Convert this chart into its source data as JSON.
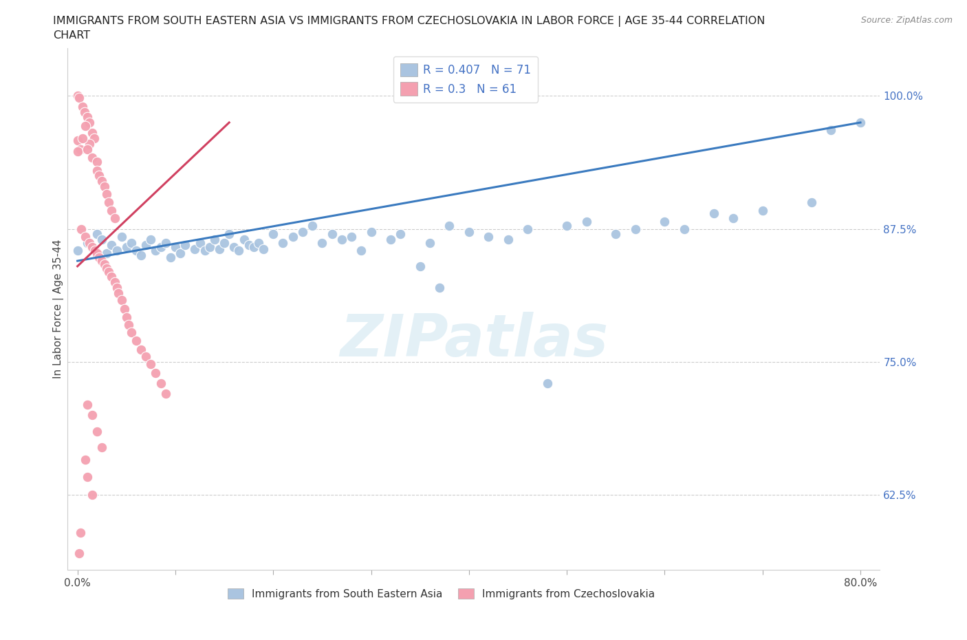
{
  "title_line1": "IMMIGRANTS FROM SOUTH EASTERN ASIA VS IMMIGRANTS FROM CZECHOSLOVAKIA IN LABOR FORCE | AGE 35-44 CORRELATION",
  "title_line2": "CHART",
  "source_text": "Source: ZipAtlas.com",
  "ylabel": "In Labor Force | Age 35-44",
  "R_blue": 0.407,
  "N_blue": 71,
  "R_pink": 0.3,
  "N_pink": 61,
  "legend_blue": "Immigrants from South Eastern Asia",
  "legend_pink": "Immigrants from Czechoslovakia",
  "blue_color": "#aac4e0",
  "pink_color": "#f4a0b0",
  "trend_blue_color": "#3a7abf",
  "trend_pink_color": "#d04060",
  "watermark": "ZIPatlas",
  "xlim": [
    -0.01,
    0.82
  ],
  "ylim": [
    0.555,
    1.045
  ],
  "yticks": [
    0.625,
    0.75,
    0.875,
    1.0
  ],
  "ytick_labels": [
    "62.5%",
    "75.0%",
    "87.5%",
    "100.0%"
  ],
  "blue_trend_x": [
    0.0,
    0.8
  ],
  "blue_trend_y": [
    0.845,
    0.975
  ],
  "pink_trend_x": [
    0.0,
    0.155
  ],
  "pink_trend_y": [
    0.84,
    0.975
  ],
  "blue_dots": [
    [
      0.0,
      0.855
    ],
    [
      0.01,
      0.862
    ],
    [
      0.015,
      0.858
    ],
    [
      0.02,
      0.87
    ],
    [
      0.025,
      0.865
    ],
    [
      0.03,
      0.852
    ],
    [
      0.035,
      0.86
    ],
    [
      0.04,
      0.855
    ],
    [
      0.045,
      0.868
    ],
    [
      0.05,
      0.858
    ],
    [
      0.055,
      0.862
    ],
    [
      0.06,
      0.855
    ],
    [
      0.065,
      0.85
    ],
    [
      0.07,
      0.86
    ],
    [
      0.075,
      0.865
    ],
    [
      0.08,
      0.855
    ],
    [
      0.085,
      0.858
    ],
    [
      0.09,
      0.862
    ],
    [
      0.095,
      0.848
    ],
    [
      0.1,
      0.858
    ],
    [
      0.105,
      0.852
    ],
    [
      0.11,
      0.86
    ],
    [
      0.12,
      0.856
    ],
    [
      0.125,
      0.862
    ],
    [
      0.13,
      0.855
    ],
    [
      0.135,
      0.858
    ],
    [
      0.14,
      0.865
    ],
    [
      0.145,
      0.856
    ],
    [
      0.15,
      0.862
    ],
    [
      0.155,
      0.87
    ],
    [
      0.16,
      0.858
    ],
    [
      0.165,
      0.855
    ],
    [
      0.17,
      0.865
    ],
    [
      0.175,
      0.86
    ],
    [
      0.18,
      0.858
    ],
    [
      0.185,
      0.862
    ],
    [
      0.19,
      0.856
    ],
    [
      0.2,
      0.87
    ],
    [
      0.21,
      0.862
    ],
    [
      0.22,
      0.868
    ],
    [
      0.23,
      0.872
    ],
    [
      0.24,
      0.878
    ],
    [
      0.25,
      0.862
    ],
    [
      0.26,
      0.87
    ],
    [
      0.27,
      0.865
    ],
    [
      0.28,
      0.868
    ],
    [
      0.29,
      0.855
    ],
    [
      0.3,
      0.872
    ],
    [
      0.32,
      0.865
    ],
    [
      0.33,
      0.87
    ],
    [
      0.35,
      0.84
    ],
    [
      0.36,
      0.862
    ],
    [
      0.37,
      0.82
    ],
    [
      0.38,
      0.878
    ],
    [
      0.4,
      0.872
    ],
    [
      0.42,
      0.868
    ],
    [
      0.44,
      0.865
    ],
    [
      0.46,
      0.875
    ],
    [
      0.48,
      0.73
    ],
    [
      0.5,
      0.878
    ],
    [
      0.52,
      0.882
    ],
    [
      0.55,
      0.87
    ],
    [
      0.57,
      0.875
    ],
    [
      0.6,
      0.882
    ],
    [
      0.62,
      0.875
    ],
    [
      0.65,
      0.89
    ],
    [
      0.67,
      0.885
    ],
    [
      0.7,
      0.892
    ],
    [
      0.75,
      0.9
    ],
    [
      0.77,
      0.968
    ],
    [
      0.8,
      0.975
    ]
  ],
  "pink_dots": [
    [
      0.0,
      1.0
    ],
    [
      0.002,
      0.998
    ],
    [
      0.005,
      0.99
    ],
    [
      0.007,
      0.985
    ],
    [
      0.01,
      0.98
    ],
    [
      0.012,
      0.975
    ],
    [
      0.015,
      0.965
    ],
    [
      0.017,
      0.96
    ],
    [
      0.0,
      0.958
    ],
    [
      0.003,
      0.95
    ],
    [
      0.008,
      0.972
    ],
    [
      0.012,
      0.955
    ],
    [
      0.0,
      0.948
    ],
    [
      0.005,
      0.96
    ],
    [
      0.01,
      0.95
    ],
    [
      0.015,
      0.942
    ],
    [
      0.02,
      0.938
    ],
    [
      0.02,
      0.93
    ],
    [
      0.022,
      0.925
    ],
    [
      0.025,
      0.92
    ],
    [
      0.028,
      0.915
    ],
    [
      0.03,
      0.908
    ],
    [
      0.032,
      0.9
    ],
    [
      0.035,
      0.892
    ],
    [
      0.038,
      0.885
    ],
    [
      0.004,
      0.875
    ],
    [
      0.008,
      0.868
    ],
    [
      0.012,
      0.862
    ],
    [
      0.015,
      0.858
    ],
    [
      0.018,
      0.855
    ],
    [
      0.02,
      0.852
    ],
    [
      0.022,
      0.848
    ],
    [
      0.025,
      0.845
    ],
    [
      0.028,
      0.842
    ],
    [
      0.03,
      0.838
    ],
    [
      0.032,
      0.835
    ],
    [
      0.035,
      0.83
    ],
    [
      0.038,
      0.825
    ],
    [
      0.04,
      0.82
    ],
    [
      0.042,
      0.815
    ],
    [
      0.045,
      0.808
    ],
    [
      0.048,
      0.8
    ],
    [
      0.05,
      0.792
    ],
    [
      0.052,
      0.785
    ],
    [
      0.055,
      0.778
    ],
    [
      0.06,
      0.77
    ],
    [
      0.065,
      0.762
    ],
    [
      0.07,
      0.755
    ],
    [
      0.075,
      0.748
    ],
    [
      0.08,
      0.74
    ],
    [
      0.085,
      0.73
    ],
    [
      0.09,
      0.72
    ],
    [
      0.01,
      0.71
    ],
    [
      0.015,
      0.7
    ],
    [
      0.02,
      0.685
    ],
    [
      0.025,
      0.67
    ],
    [
      0.008,
      0.658
    ],
    [
      0.01,
      0.642
    ],
    [
      0.015,
      0.625
    ],
    [
      0.003,
      0.59
    ],
    [
      0.002,
      0.57
    ]
  ]
}
